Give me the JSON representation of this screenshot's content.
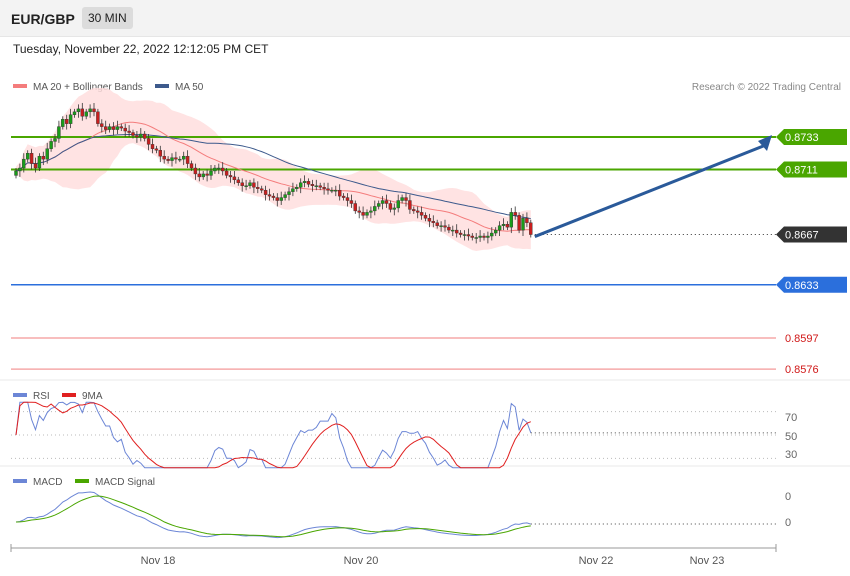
{
  "header": {
    "symbol": "EUR/GBP",
    "timeframe": "30 MIN",
    "datetime": "Tuesday, November 22, 2022 12:12:05 PM CET"
  },
  "colors": {
    "candle_up": "#1a9c1a",
    "candle_down": "#c81e1e",
    "ma20": "#f47c7c",
    "bands": "#ffdede",
    "ma50": "#3d5a8c",
    "resistance": "#4aa600",
    "support": "#2b6fdc",
    "support_weak": "#f5a0a0",
    "current": "#333333",
    "arrow": "#2a5a9a",
    "rsi": "#6c86d6",
    "rsi_ma": "#e02020",
    "macd": "#6c86d6",
    "macd_signal": "#4aa600"
  },
  "chart_data": [
    {
      "type": "line",
      "name": "price",
      "legend": [
        {
          "label": "MA 20 + Bollinger Bands"
        },
        {
          "label": "MA 50"
        }
      ],
      "legend_placement": "top-left",
      "credit": "Research © 2022 Trading Central",
      "ylim": [
        0.8572,
        0.8758
      ],
      "close": [
        0.871,
        0.8712,
        0.8718,
        0.8722,
        0.8715,
        0.8712,
        0.872,
        0.8718,
        0.8725,
        0.873,
        0.8732,
        0.874,
        0.8745,
        0.8742,
        0.8748,
        0.875,
        0.8752,
        0.8747,
        0.875,
        0.8752,
        0.875,
        0.8742,
        0.874,
        0.8738,
        0.874,
        0.8738,
        0.874,
        0.8739,
        0.8737,
        0.8736,
        0.8734,
        0.8733,
        0.8735,
        0.8732,
        0.8728,
        0.8725,
        0.8724,
        0.872,
        0.8718,
        0.8717,
        0.8719,
        0.8718,
        0.8718,
        0.872,
        0.8715,
        0.8712,
        0.8708,
        0.8706,
        0.8708,
        0.8707,
        0.871,
        0.8712,
        0.8712,
        0.871,
        0.8707,
        0.8706,
        0.8704,
        0.8702,
        0.87,
        0.87,
        0.8702,
        0.8699,
        0.8698,
        0.8697,
        0.8694,
        0.8693,
        0.8692,
        0.869,
        0.8692,
        0.8694,
        0.8696,
        0.8698,
        0.8699,
        0.8702,
        0.8703,
        0.8701,
        0.87,
        0.87,
        0.8699,
        0.8698,
        0.8697,
        0.8697,
        0.8697,
        0.8693,
        0.8692,
        0.869,
        0.8688,
        0.8683,
        0.8682,
        0.868,
        0.8682,
        0.8683,
        0.8686,
        0.8688,
        0.869,
        0.8688,
        0.8684,
        0.8685,
        0.869,
        0.8692,
        0.869,
        0.8684,
        0.8683,
        0.8682,
        0.868,
        0.8678,
        0.8676,
        0.8675,
        0.8673,
        0.8673,
        0.8672,
        0.867,
        0.867,
        0.8668,
        0.8667,
        0.8667,
        0.8666,
        0.8665,
        0.8665,
        0.8666,
        0.8665,
        0.8666,
        0.8668,
        0.867,
        0.8673,
        0.8674,
        0.8672,
        0.8682,
        0.868,
        0.867,
        0.8678,
        0.8675,
        0.8667
      ],
      "levels": [
        {
          "value": 0.8733,
          "label": "0.8733",
          "kind": "resistance"
        },
        {
          "value": 0.8711,
          "label": "0.8711",
          "kind": "resistance"
        },
        {
          "value": 0.8667,
          "label": "0.8667",
          "kind": "current"
        },
        {
          "value": 0.8633,
          "label": "0.8633",
          "kind": "support"
        },
        {
          "value": 0.8597,
          "label": "0.8597",
          "kind": "support_weak"
        },
        {
          "value": 0.8576,
          "label": "0.8576",
          "kind": "support_weak"
        }
      ],
      "x_ticks": [
        "Nov 18",
        "Nov 20",
        "Nov 22",
        "Nov 23"
      ]
    },
    {
      "type": "line",
      "name": "rsi",
      "legend": [
        {
          "label": "RSI"
        },
        {
          "label": "9MA"
        }
      ],
      "y_ticks": [
        "70",
        "50",
        "30"
      ],
      "ylim": [
        20,
        80
      ]
    },
    {
      "type": "line",
      "name": "macd",
      "legend": [
        {
          "label": "MACD"
        },
        {
          "label": "MACD Signal"
        }
      ],
      "y_ticks": [
        "0",
        "0"
      ]
    }
  ]
}
